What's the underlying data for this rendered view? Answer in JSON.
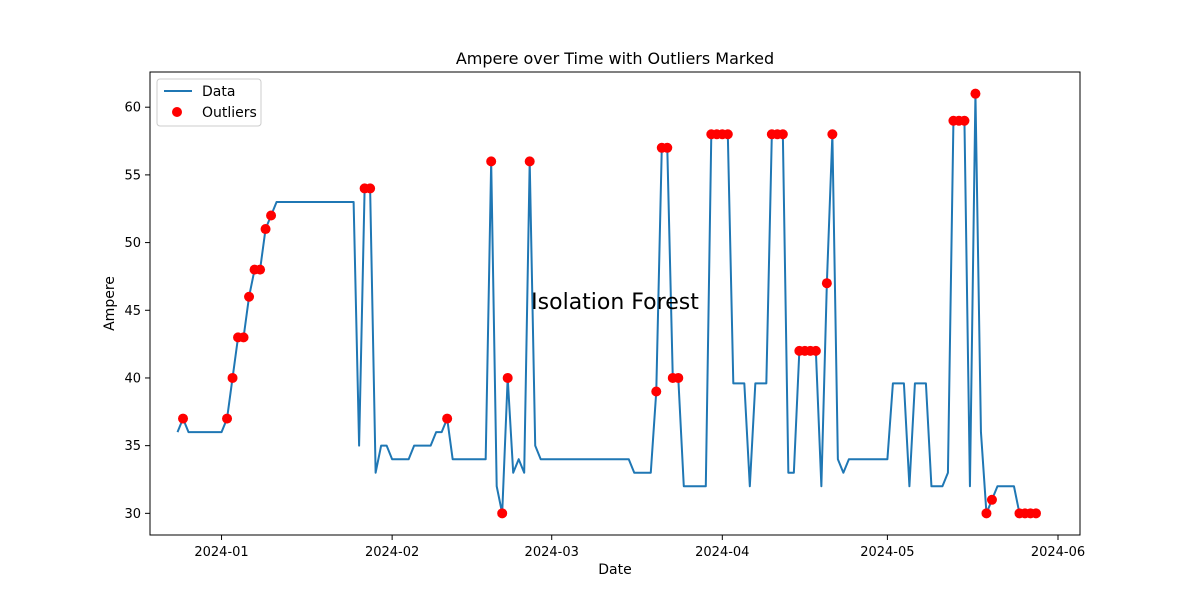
{
  "chart_data": {
    "type": "line",
    "title": "Ampere over Time with Outliers Marked",
    "xlabel": "Date",
    "ylabel": "Ampere",
    "annotation": "Isolation Forest",
    "x_range": [
      "2023-12-19",
      "2024-06-05"
    ],
    "ylim": [
      28.4,
      62.6
    ],
    "y_ticks": [
      30,
      35,
      40,
      45,
      50,
      55,
      60
    ],
    "x_ticks": [
      "2024-01-01",
      "2024-02-01",
      "2024-03-01",
      "2024-04-01",
      "2024-05-01",
      "2024-06-01"
    ],
    "x_tick_labels": [
      "2024-01",
      "2024-02",
      "2024-03",
      "2024-04",
      "2024-05",
      "2024-06"
    ],
    "legend": {
      "location": "upper-left",
      "entries": [
        "Data",
        "Outliers"
      ]
    },
    "grid": false,
    "colors": {
      "line": "#1f77b4",
      "outliers": "#ff0000"
    },
    "series": [
      {
        "name": "Data",
        "type": "line",
        "points": [
          [
            "2023-12-24",
            36
          ],
          [
            "2023-12-25",
            37
          ],
          [
            "2023-12-26",
            36
          ],
          [
            "2023-12-28",
            36
          ],
          [
            "2023-12-30",
            36
          ],
          [
            "2024-01-01",
            36
          ],
          [
            "2024-01-02",
            37
          ],
          [
            "2024-01-03",
            40
          ],
          [
            "2024-01-04",
            43
          ],
          [
            "2024-01-05",
            43
          ],
          [
            "2024-01-06",
            46
          ],
          [
            "2024-01-07",
            48
          ],
          [
            "2024-01-08",
            48
          ],
          [
            "2024-01-09",
            51
          ],
          [
            "2024-01-10",
            52
          ],
          [
            "2024-01-11",
            53
          ],
          [
            "2024-01-14",
            53
          ],
          [
            "2024-01-18",
            53
          ],
          [
            "2024-01-22",
            53
          ],
          [
            "2024-01-25",
            53
          ],
          [
            "2024-01-26",
            35
          ],
          [
            "2024-01-27",
            54
          ],
          [
            "2024-01-28",
            54
          ],
          [
            "2024-01-29",
            33
          ],
          [
            "2024-01-30",
            35
          ],
          [
            "2024-01-31",
            35
          ],
          [
            "2024-02-01",
            34
          ],
          [
            "2024-02-04",
            34
          ],
          [
            "2024-02-05",
            35
          ],
          [
            "2024-02-08",
            35
          ],
          [
            "2024-02-09",
            36
          ],
          [
            "2024-02-10",
            36
          ],
          [
            "2024-02-11",
            37
          ],
          [
            "2024-02-12",
            34
          ],
          [
            "2024-02-16",
            34
          ],
          [
            "2024-02-18",
            34
          ],
          [
            "2024-02-19",
            56
          ],
          [
            "2024-02-20",
            32
          ],
          [
            "2024-02-21",
            30
          ],
          [
            "2024-02-22",
            40
          ],
          [
            "2024-02-23",
            33
          ],
          [
            "2024-02-24",
            34
          ],
          [
            "2024-02-25",
            33
          ],
          [
            "2024-02-26",
            56
          ],
          [
            "2024-02-27",
            35
          ],
          [
            "2024-02-28",
            34
          ],
          [
            "2024-03-05",
            34
          ],
          [
            "2024-03-10",
            34
          ],
          [
            "2024-03-15",
            34
          ],
          [
            "2024-03-16",
            33
          ],
          [
            "2024-03-19",
            33
          ],
          [
            "2024-03-20",
            39
          ],
          [
            "2024-03-21",
            57
          ],
          [
            "2024-03-22",
            57
          ],
          [
            "2024-03-23",
            40
          ],
          [
            "2024-03-24",
            40
          ],
          [
            "2024-03-25",
            32
          ],
          [
            "2024-03-29",
            32
          ],
          [
            "2024-03-30",
            58
          ],
          [
            "2024-03-31",
            58
          ],
          [
            "2024-04-01",
            58
          ],
          [
            "2024-04-02",
            58
          ],
          [
            "2024-04-03",
            39.6
          ],
          [
            "2024-04-05",
            39.6
          ],
          [
            "2024-04-06",
            32
          ],
          [
            "2024-04-07",
            39.6
          ],
          [
            "2024-04-09",
            39.6
          ],
          [
            "2024-04-10",
            58
          ],
          [
            "2024-04-11",
            58
          ],
          [
            "2024-04-12",
            58
          ],
          [
            "2024-04-13",
            33
          ],
          [
            "2024-04-14",
            33
          ],
          [
            "2024-04-15",
            42
          ],
          [
            "2024-04-16",
            42
          ],
          [
            "2024-04-17",
            42
          ],
          [
            "2024-04-18",
            42
          ],
          [
            "2024-04-19",
            32
          ],
          [
            "2024-04-20",
            47
          ],
          [
            "2024-04-21",
            58
          ],
          [
            "2024-04-22",
            34
          ],
          [
            "2024-04-23",
            33
          ],
          [
            "2024-04-24",
            34
          ],
          [
            "2024-04-28",
            34
          ],
          [
            "2024-05-01",
            34
          ],
          [
            "2024-05-02",
            39.6
          ],
          [
            "2024-05-04",
            39.6
          ],
          [
            "2024-05-05",
            32
          ],
          [
            "2024-05-06",
            39.6
          ],
          [
            "2024-05-08",
            39.6
          ],
          [
            "2024-05-09",
            32
          ],
          [
            "2024-05-11",
            32
          ],
          [
            "2024-05-12",
            33
          ],
          [
            "2024-05-13",
            59
          ],
          [
            "2024-05-14",
            59
          ],
          [
            "2024-05-15",
            59
          ],
          [
            "2024-05-16",
            32
          ],
          [
            "2024-05-17",
            61
          ],
          [
            "2024-05-18",
            36
          ],
          [
            "2024-05-19",
            30
          ],
          [
            "2024-05-20",
            31
          ],
          [
            "2024-05-21",
            32
          ],
          [
            "2024-05-24",
            32
          ],
          [
            "2024-05-25",
            30
          ],
          [
            "2024-05-26",
            30
          ],
          [
            "2024-05-27",
            30
          ],
          [
            "2024-05-28",
            30
          ]
        ]
      },
      {
        "name": "Outliers",
        "type": "scatter",
        "points": [
          [
            "2023-12-25",
            37
          ],
          [
            "2024-01-02",
            37
          ],
          [
            "2024-01-03",
            40
          ],
          [
            "2024-01-04",
            43
          ],
          [
            "2024-01-05",
            43
          ],
          [
            "2024-01-06",
            46
          ],
          [
            "2024-01-07",
            48
          ],
          [
            "2024-01-08",
            48
          ],
          [
            "2024-01-09",
            51
          ],
          [
            "2024-01-10",
            52
          ],
          [
            "2024-01-27",
            54
          ],
          [
            "2024-01-28",
            54
          ],
          [
            "2024-02-11",
            37
          ],
          [
            "2024-02-19",
            56
          ],
          [
            "2024-02-21",
            30
          ],
          [
            "2024-02-22",
            40
          ],
          [
            "2024-02-26",
            56
          ],
          [
            "2024-03-20",
            39
          ],
          [
            "2024-03-21",
            57
          ],
          [
            "2024-03-22",
            57
          ],
          [
            "2024-03-23",
            40
          ],
          [
            "2024-03-24",
            40
          ],
          [
            "2024-03-30",
            58
          ],
          [
            "2024-03-31",
            58
          ],
          [
            "2024-04-01",
            58
          ],
          [
            "2024-04-02",
            58
          ],
          [
            "2024-04-10",
            58
          ],
          [
            "2024-04-11",
            58
          ],
          [
            "2024-04-12",
            58
          ],
          [
            "2024-04-15",
            42
          ],
          [
            "2024-04-16",
            42
          ],
          [
            "2024-04-17",
            42
          ],
          [
            "2024-04-18",
            42
          ],
          [
            "2024-04-20",
            47
          ],
          [
            "2024-04-21",
            58
          ],
          [
            "2024-05-13",
            59
          ],
          [
            "2024-05-14",
            59
          ],
          [
            "2024-05-15",
            59
          ],
          [
            "2024-05-17",
            61
          ],
          [
            "2024-05-19",
            30
          ],
          [
            "2024-05-20",
            31
          ],
          [
            "2024-05-25",
            30
          ],
          [
            "2024-05-26",
            30
          ],
          [
            "2024-05-27",
            30
          ],
          [
            "2024-05-28",
            30
          ]
        ]
      }
    ]
  }
}
